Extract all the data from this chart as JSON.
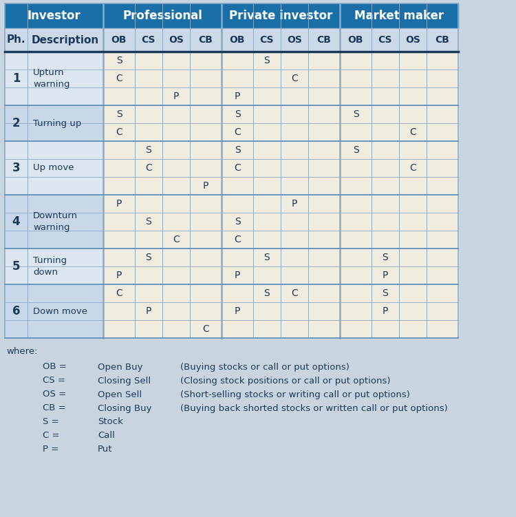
{
  "title_bg_color": "#1a6fa8",
  "title_text_color": "#ffffff",
  "header_bg_color": "#ccd9e8",
  "row_bg_odd": "#dce6f0",
  "row_bg_even": "#c8d8e8",
  "cell_bg": "#f0ece0",
  "border_color": "#8aaac8",
  "border_color_thick": "#6090b8",
  "text_color_dark": "#1a3a5c",
  "legend_bg": "#c8d4e0",
  "sub_headers": [
    "Ph.",
    "Description",
    "OB",
    "CS",
    "OS",
    "CB",
    "OB",
    "CS",
    "OS",
    "CB",
    "OB",
    "CS",
    "OS",
    "CB"
  ],
  "phases": [
    {
      "phase": "1",
      "description": "Upturn\nwarning",
      "rows": [
        [
          "S",
          "",
          "",
          "",
          "",
          "S",
          "",
          "",
          "",
          "",
          "",
          ""
        ],
        [
          "C",
          "",
          "",
          "",
          "",
          "",
          "C",
          "",
          "",
          "",
          "",
          ""
        ],
        [
          "",
          "",
          "P",
          "",
          "P",
          "",
          "",
          "",
          "",
          "",
          "",
          ""
        ]
      ]
    },
    {
      "phase": "2",
      "description": "Turning up",
      "rows": [
        [
          "S",
          "",
          "",
          "",
          "S",
          "",
          "",
          "",
          "S",
          "",
          "",
          ""
        ],
        [
          "C",
          "",
          "",
          "",
          "C",
          "",
          "",
          "",
          "",
          "",
          "C",
          ""
        ]
      ]
    },
    {
      "phase": "3",
      "description": "Up move",
      "rows": [
        [
          "",
          "S",
          "",
          "",
          "S",
          "",
          "",
          "",
          "S",
          "",
          "",
          ""
        ],
        [
          "",
          "C",
          "",
          "",
          "C",
          "",
          "",
          "",
          "",
          "",
          "C",
          ""
        ],
        [
          "",
          "",
          "",
          "P",
          "",
          "",
          "",
          "",
          "",
          "",
          "",
          ""
        ]
      ]
    },
    {
      "phase": "4",
      "description": "Downturn\nwarning",
      "rows": [
        [
          "P",
          "",
          "",
          "",
          "",
          "",
          "P",
          "",
          "",
          "",
          "",
          ""
        ],
        [
          "",
          "S",
          "",
          "",
          "S",
          "",
          "",
          "",
          "",
          "",
          "",
          ""
        ],
        [
          "",
          "",
          "C",
          "",
          "C",
          "",
          "",
          "",
          "",
          "",
          "",
          ""
        ]
      ]
    },
    {
      "phase": "5",
      "description": "Turning\ndown",
      "rows": [
        [
          "",
          "S",
          "",
          "",
          "",
          "S",
          "",
          "",
          "",
          "S",
          "",
          ""
        ],
        [
          "P",
          "",
          "",
          "",
          "P",
          "",
          "",
          "",
          "",
          "P",
          "",
          ""
        ]
      ]
    },
    {
      "phase": "6",
      "description": "Down move",
      "rows": [
        [
          "C",
          "",
          "",
          "",
          "",
          "S",
          "C",
          "",
          "",
          "S",
          "",
          ""
        ],
        [
          "",
          "P",
          "",
          "",
          "P",
          "",
          "",
          "",
          "",
          "P",
          "",
          ""
        ],
        [
          "",
          "",
          "",
          "C",
          "",
          "",
          "",
          "",
          "",
          "",
          "",
          ""
        ]
      ]
    }
  ],
  "legend_lines": [
    [
      "OB =",
      "Open Buy",
      "(Buying stocks or call or put options)"
    ],
    [
      "CS =",
      "Closing Sell",
      "(Closing stock positions or call or put options)"
    ],
    [
      "OS =",
      "Open Sell",
      "(Short-selling stocks or writing call or put options)"
    ],
    [
      "CB =",
      "Closing Buy",
      "(Buying back shorted stocks or written call or put options)"
    ],
    [
      "S =",
      "Stock",
      ""
    ],
    [
      "C =",
      "Call",
      ""
    ],
    [
      "P =",
      "Put",
      ""
    ]
  ]
}
